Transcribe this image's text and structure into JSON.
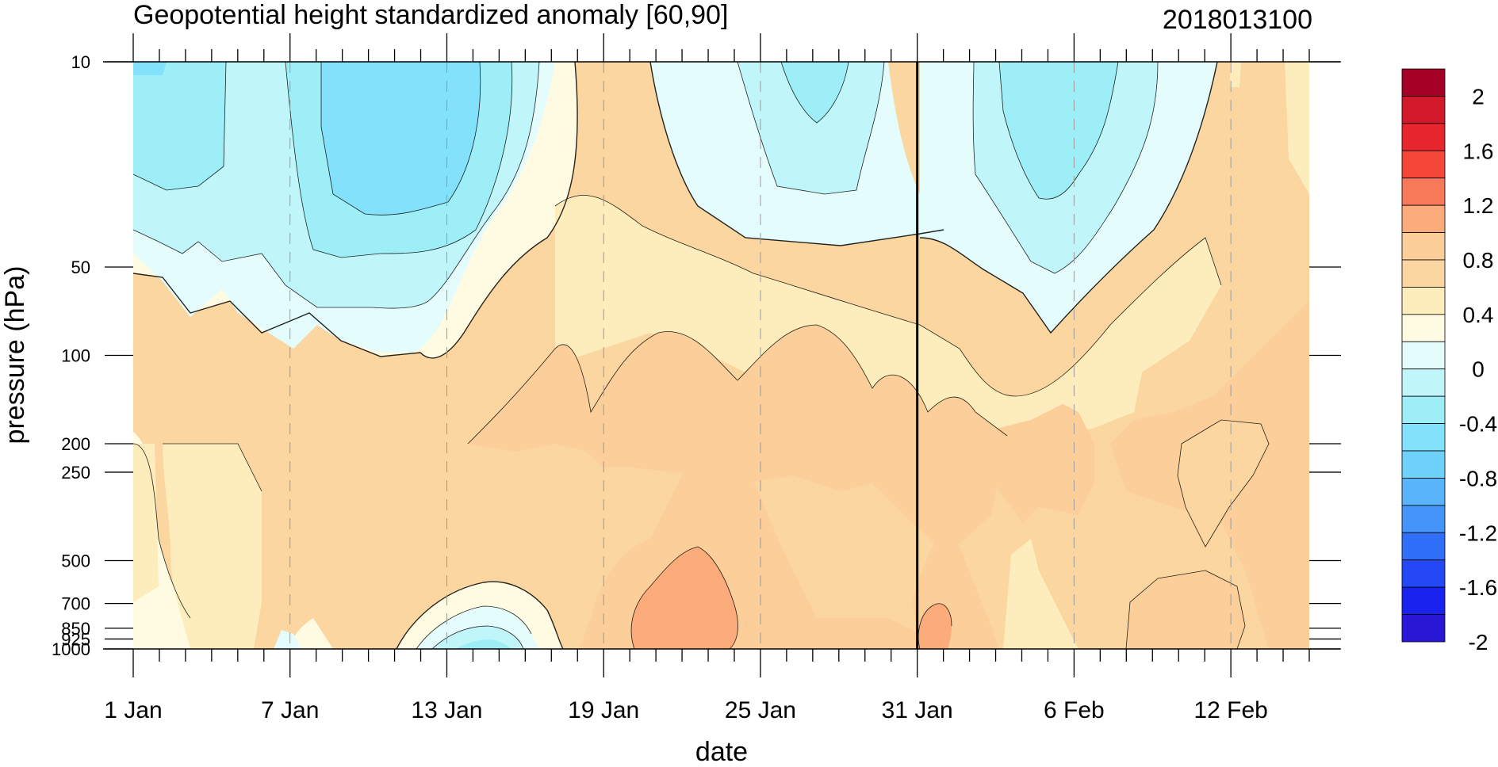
{
  "chart_data": {
    "type": "heatmap",
    "title": "Geopotential height standardized anomaly [60,90]",
    "right_title": "2018013100",
    "xlabel": "date",
    "ylabel": "pressure (hPa)",
    "x_ticks": [
      "1 Jan",
      "7 Jan",
      "13 Jan",
      "19 Jan",
      "25 Jan",
      "31 Jan",
      "6 Feb",
      "12 Feb"
    ],
    "x_start": "2018-01-01",
    "x_end": "2018-02-15",
    "analysis_date": "2018-01-31",
    "y_ticks": [
      "10",
      "50",
      "100",
      "200",
      "250",
      "500",
      "700",
      "850",
      "925",
      "1000"
    ],
    "y_scale": "log",
    "y_range": [
      10,
      1000
    ],
    "colorbar": {
      "labels": [
        "2",
        "1.6",
        "1.2",
        "0.8",
        "0.4",
        "0",
        "-0.4",
        "-0.8",
        "-1.2",
        "-1.6",
        "-2"
      ],
      "colors": [
        "#a50026",
        "#d2182b",
        "#e8262d",
        "#f4473a",
        "#f7795a",
        "#fcac7a",
        "#fbce9a",
        "#fbd6a0",
        "#fdedbc",
        "#fefbe2",
        "#e5fcfd",
        "#c0f6fa",
        "#9eeef8",
        "#84e1fb",
        "#6ed2fb",
        "#5ab4fb",
        "#4594fa",
        "#3070f8",
        "#2448f5",
        "#1a22f0",
        "#2a17d6"
      ]
    },
    "anomaly_samples": {
      "pressure_levels": [
        10,
        30,
        50,
        100,
        200,
        500,
        850,
        1000
      ],
      "dates": [
        "1 Jan",
        "7 Jan",
        "13 Jan",
        "19 Jan",
        "25 Jan",
        "31 Jan",
        "6 Feb",
        "12 Feb",
        "15 Feb"
      ],
      "values": [
        [
          -0.6,
          -0.3,
          -0.6,
          0.1,
          -0.2,
          -0.1,
          -0.6,
          0.3,
          0.6
        ],
        [
          -0.6,
          -0.5,
          -0.7,
          0.3,
          -0.1,
          -0.1,
          -0.7,
          0.3,
          0.5
        ],
        [
          -0.3,
          -0.5,
          -0.5,
          0.3,
          0.2,
          0.1,
          -0.2,
          0.4,
          0.6
        ],
        [
          0.1,
          -0.1,
          0.0,
          0.6,
          0.5,
          0.3,
          0.3,
          0.5,
          0.6
        ],
        [
          0.2,
          0.1,
          0.3,
          0.6,
          0.6,
          0.6,
          0.5,
          0.5,
          0.6
        ],
        [
          0.2,
          0.1,
          0.1,
          0.6,
          0.9,
          0.6,
          0.3,
          0.5,
          0.6
        ],
        [
          0.2,
          0.0,
          -0.3,
          0.3,
          0.9,
          0.9,
          0.4,
          0.5,
          0.4
        ],
        [
          0.1,
          -0.1,
          -0.5,
          0.1,
          0.5,
          0.8,
          0.2,
          0.4,
          0.4
        ]
      ]
    }
  }
}
